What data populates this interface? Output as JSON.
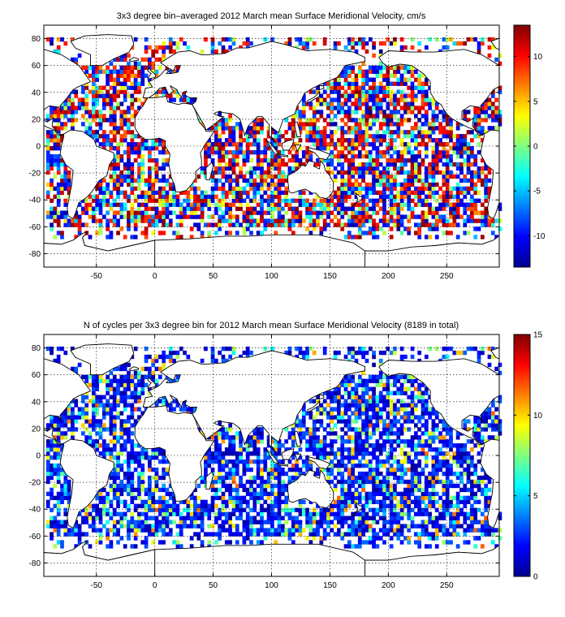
{
  "chart_data": [
    {
      "type": "heatmap",
      "title": "3x3 degree bin–averaged 2012 March mean Surface Meridional Velocity, cm/s",
      "x_ticks": [
        -50,
        0,
        50,
        100,
        150,
        200,
        250
      ],
      "y_ticks": [
        80,
        60,
        40,
        20,
        0,
        -20,
        -40,
        -60,
        -80
      ],
      "xlim": [
        -95,
        295
      ],
      "ylim": [
        -90,
        90
      ],
      "colorbar_ticks": [
        10,
        5,
        0,
        -5,
        -10
      ],
      "clim": [
        -13.5,
        13.5
      ],
      "colormap": "jet",
      "grid": true,
      "bin_size_deg": 3
    },
    {
      "type": "heatmap",
      "title": "N of cycles per 3x3 degree bin for 2012 March mean Surface Meridional Velocity (8189 in total)",
      "x_ticks": [
        -50,
        0,
        50,
        100,
        150,
        200,
        250
      ],
      "y_ticks": [
        80,
        60,
        40,
        20,
        0,
        -20,
        -40,
        -60,
        -80
      ],
      "xlim": [
        -95,
        295
      ],
      "ylim": [
        -90,
        90
      ],
      "colorbar_ticks": [
        15,
        10,
        5,
        0
      ],
      "clim": [
        0,
        15
      ],
      "colormap": "jet",
      "grid": true,
      "bin_size_deg": 3,
      "total_cycles": 8189
    }
  ]
}
